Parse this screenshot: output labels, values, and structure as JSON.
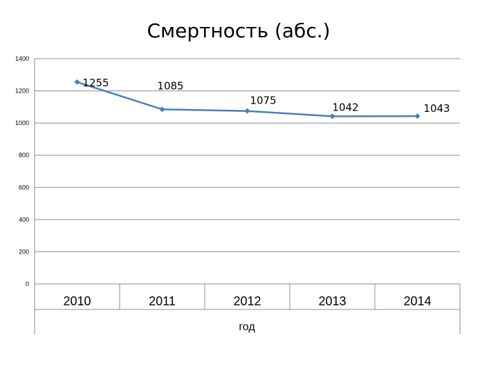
{
  "chart_data": {
    "type": "line",
    "title": "Смертность (абс.)",
    "xlabel": "год",
    "ylabel": "",
    "categories": [
      "2010",
      "2011",
      "2012",
      "2013",
      "2014"
    ],
    "values": [
      1255,
      1085,
      1075,
      1042,
      1043
    ],
    "data_labels": [
      "1255",
      "1085",
      "1075",
      "1042",
      "1043"
    ],
    "yticks": [
      "0",
      "200",
      "400",
      "600",
      "800",
      "1000",
      "1200",
      "1400"
    ],
    "ylim": [
      0,
      1400
    ],
    "grid": "horizontal",
    "line_color": "#4a7ebb",
    "marker": "diamond"
  }
}
